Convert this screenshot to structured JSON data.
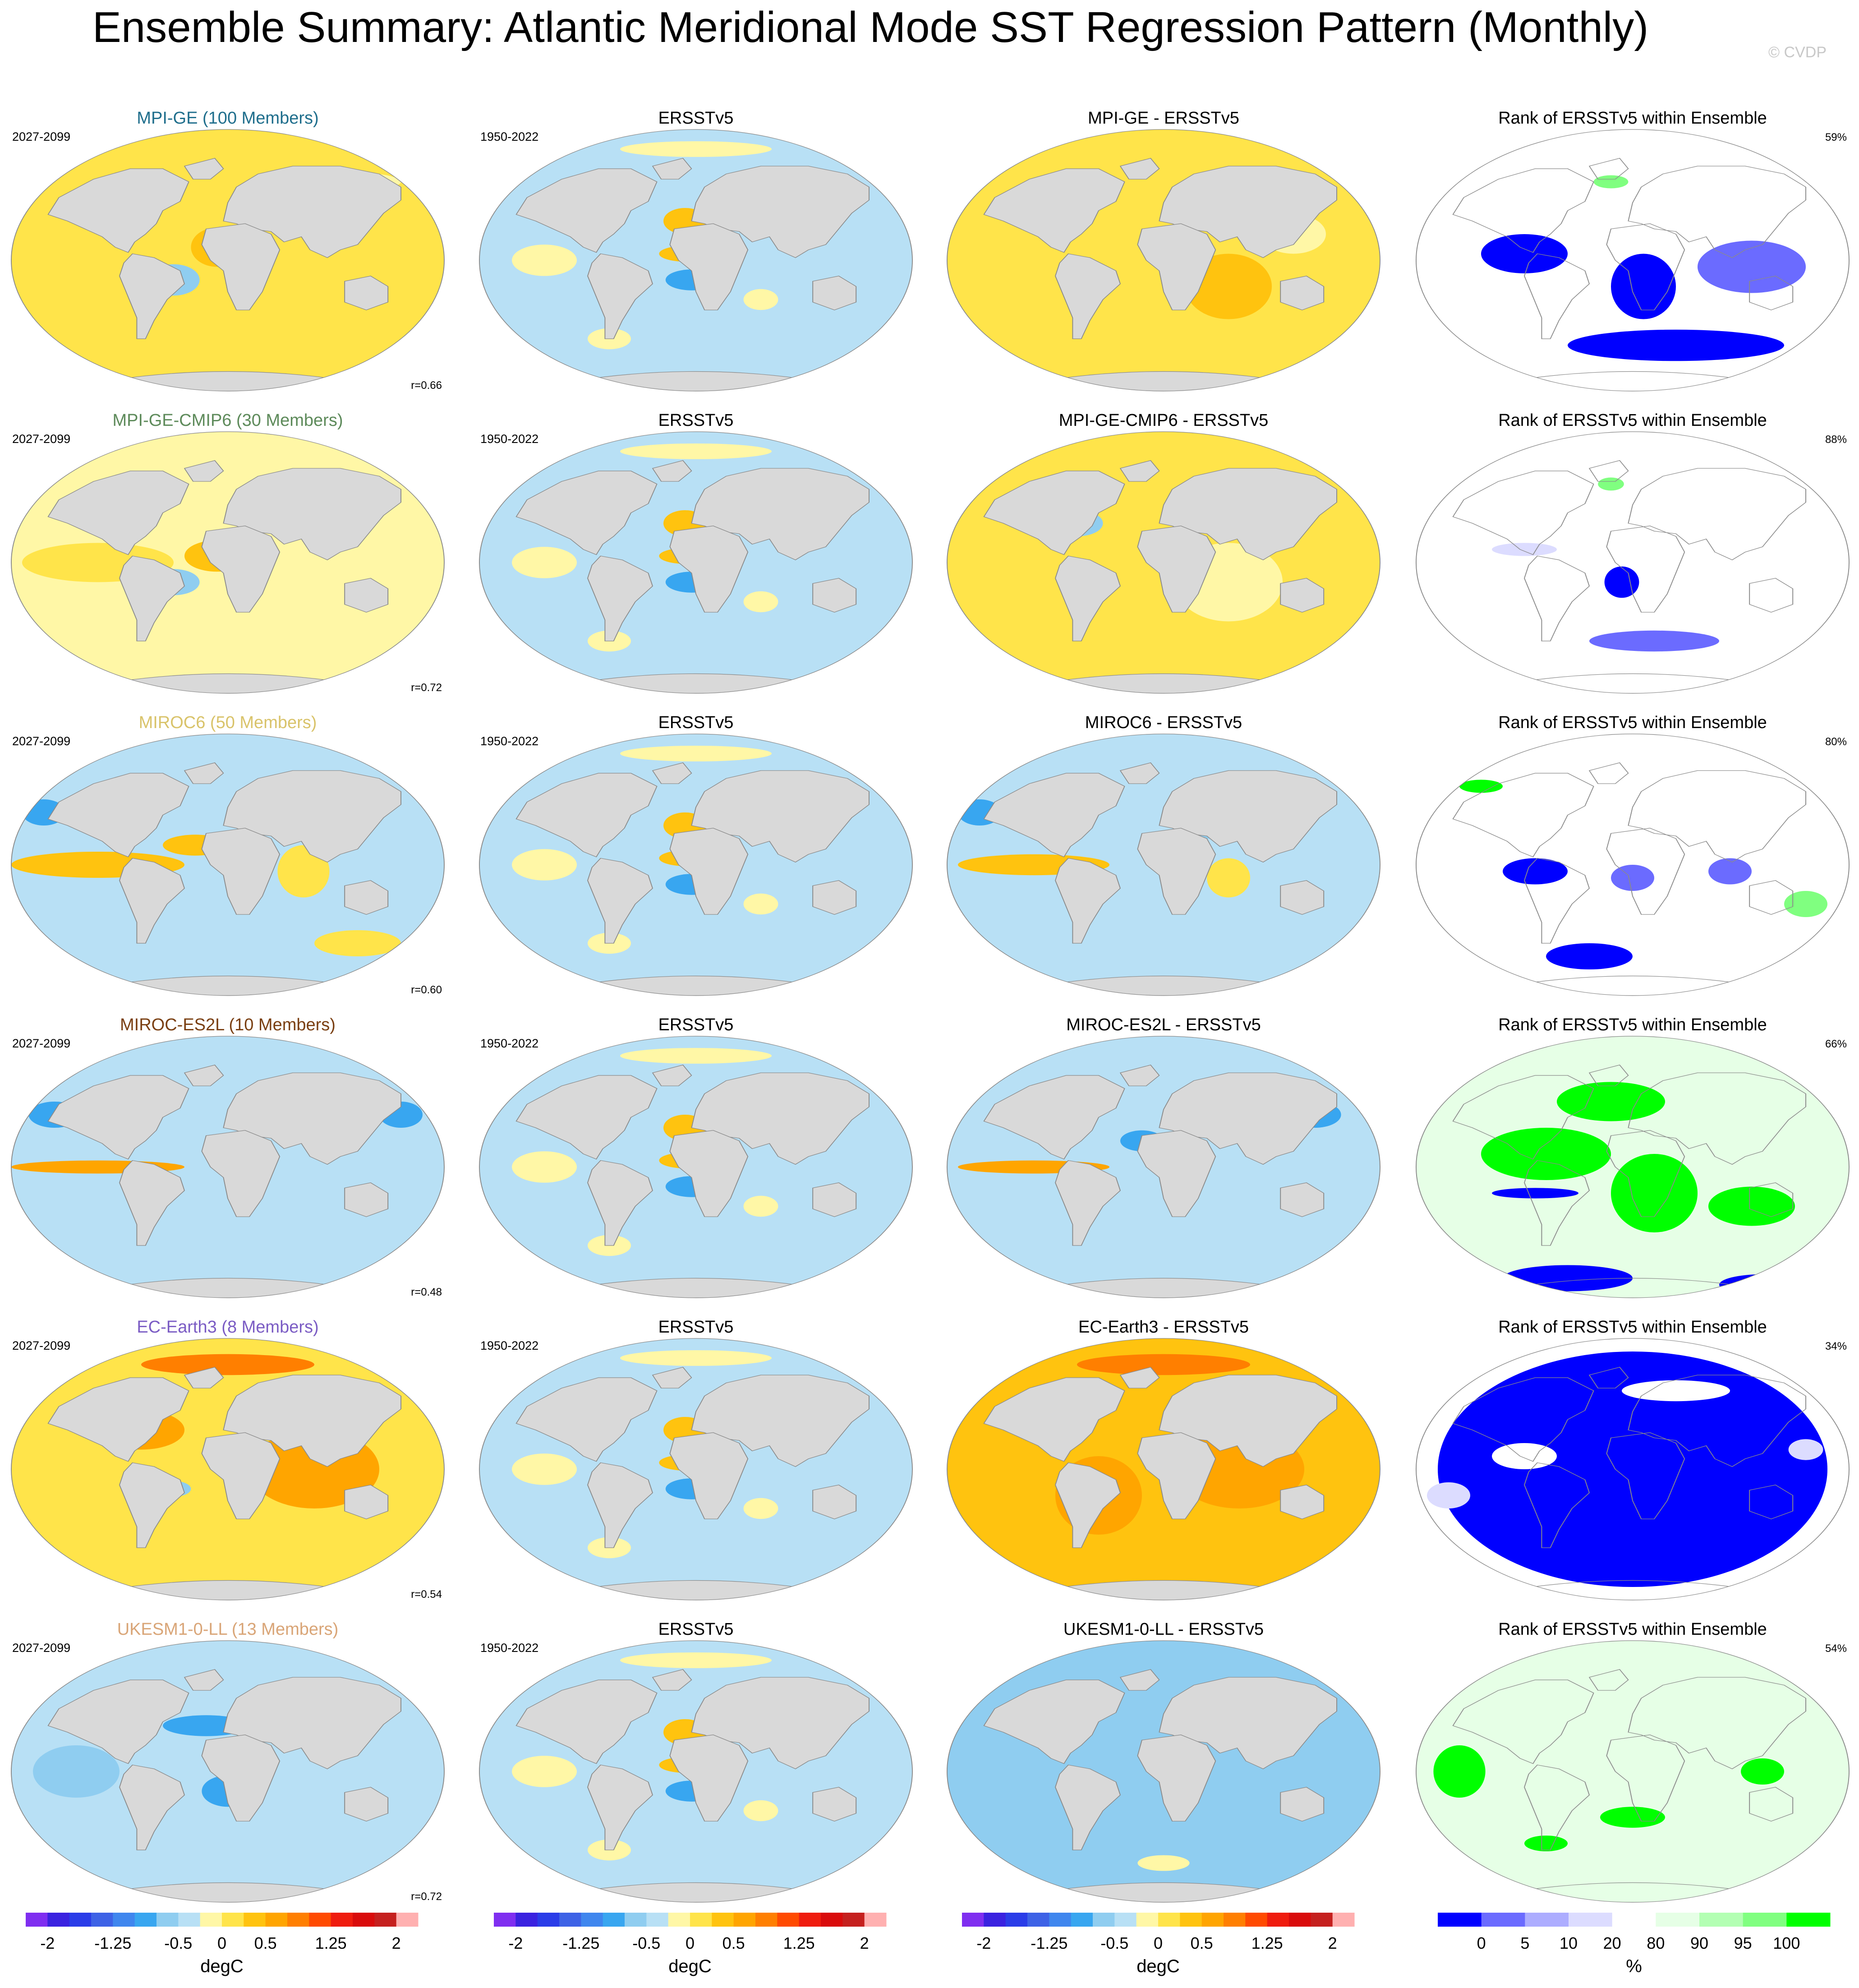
{
  "title": "Ensemble Summary: Atlantic Meridional Mode SST Regression Pattern (Monthly)",
  "watermark": "© CVDP",
  "chart_data": {
    "type": "heatmap",
    "map_projection": "robinson-like (global)",
    "columns": [
      "model-ensemble",
      "observations",
      "difference",
      "rank"
    ],
    "rows": [
      {
        "model": {
          "title": "MPI-GE (100 Members)",
          "title_color": "#1f6e8c",
          "period": "2027-2099",
          "r": "r=0.66"
        },
        "obs": {
          "title": "ERSSTv5",
          "period": "1950-2022"
        },
        "diff": {
          "title": "MPI-GE - ERSSTv5"
        },
        "rank": {
          "title": "Rank of ERSSTv5 within Ensemble",
          "pct": "59%"
        }
      },
      {
        "model": {
          "title": "MPI-GE-CMIP6 (30 Members)",
          "title_color": "#5d8a5a",
          "period": "2027-2099",
          "r": "r=0.72"
        },
        "obs": {
          "title": "ERSSTv5",
          "period": "1950-2022"
        },
        "diff": {
          "title": "MPI-GE-CMIP6 - ERSSTv5"
        },
        "rank": {
          "title": "Rank of ERSSTv5 within Ensemble",
          "pct": "88%"
        }
      },
      {
        "model": {
          "title": "MIROC6 (50 Members)",
          "title_color": "#d9c36a",
          "period": "2027-2099",
          "r": "r=0.60"
        },
        "obs": {
          "title": "ERSSTv5",
          "period": "1950-2022"
        },
        "diff": {
          "title": "MIROC6 - ERSSTv5"
        },
        "rank": {
          "title": "Rank of ERSSTv5 within Ensemble",
          "pct": "80%"
        }
      },
      {
        "model": {
          "title": "MIROC-ES2L (10 Members)",
          "title_color": "#7a3f12",
          "period": "2027-2099",
          "r": "r=0.48"
        },
        "obs": {
          "title": "ERSSTv5",
          "period": "1950-2022"
        },
        "diff": {
          "title": "MIROC-ES2L - ERSSTv5"
        },
        "rank": {
          "title": "Rank of ERSSTv5 within Ensemble",
          "pct": "66%"
        }
      },
      {
        "model": {
          "title": "EC-Earth3 (8 Members)",
          "title_color": "#7b5cc4",
          "period": "2027-2099",
          "r": "r=0.54"
        },
        "obs": {
          "title": "ERSSTv5",
          "period": "1950-2022"
        },
        "diff": {
          "title": "EC-Earth3 - ERSSTv5"
        },
        "rank": {
          "title": "Rank of ERSSTv5 within Ensemble",
          "pct": "34%"
        }
      },
      {
        "model": {
          "title": "UKESM1-0-LL (13 Members)",
          "title_color": "#d9a577",
          "period": "2027-2099",
          "r": "r=0.72"
        },
        "obs": {
          "title": "ERSSTv5",
          "period": "1950-2022"
        },
        "diff": {
          "title": "UKESM1-0-LL - ERSSTv5"
        },
        "rank": {
          "title": "Rank of ERSSTv5 within Ensemble",
          "pct": "54%"
        }
      }
    ],
    "sst_colorbar": {
      "label": "degC",
      "colors": [
        "#7f2ef0",
        "#3a22e0",
        "#2a3ce8",
        "#3d62e6",
        "#3f86ee",
        "#38a6f0",
        "#8fcdf0",
        "#b8e0f5",
        "#fff7a6",
        "#ffe44a",
        "#ffc30f",
        "#ffa500",
        "#ff7f00",
        "#ff4a00",
        "#ef1c0e",
        "#d90b0b",
        "#c5201e",
        "#ffb0b0"
      ],
      "tick_labels": [
        "-2",
        "-1.25",
        "-0.5",
        "0",
        "0.5",
        "1.25",
        "2"
      ],
      "tick_values": [
        -2,
        -1.25,
        -0.5,
        0,
        0.5,
        1.25,
        2
      ],
      "range": [
        -2.25,
        2.25
      ]
    },
    "rank_colorbar": {
      "label": "%",
      "colors": [
        "#0000ff",
        "#6b6bff",
        "#adadff",
        "#dcdcff",
        "#ffffff",
        "#e6ffe6",
        "#b3ffb3",
        "#80ff80",
        "#00ff00"
      ],
      "tick_labels": [
        "0",
        "5",
        "10",
        "20",
        "80",
        "90",
        "95",
        "100"
      ]
    },
    "land_color": "#d9d9d9",
    "ocean_neutral_color": "#ffffff"
  }
}
